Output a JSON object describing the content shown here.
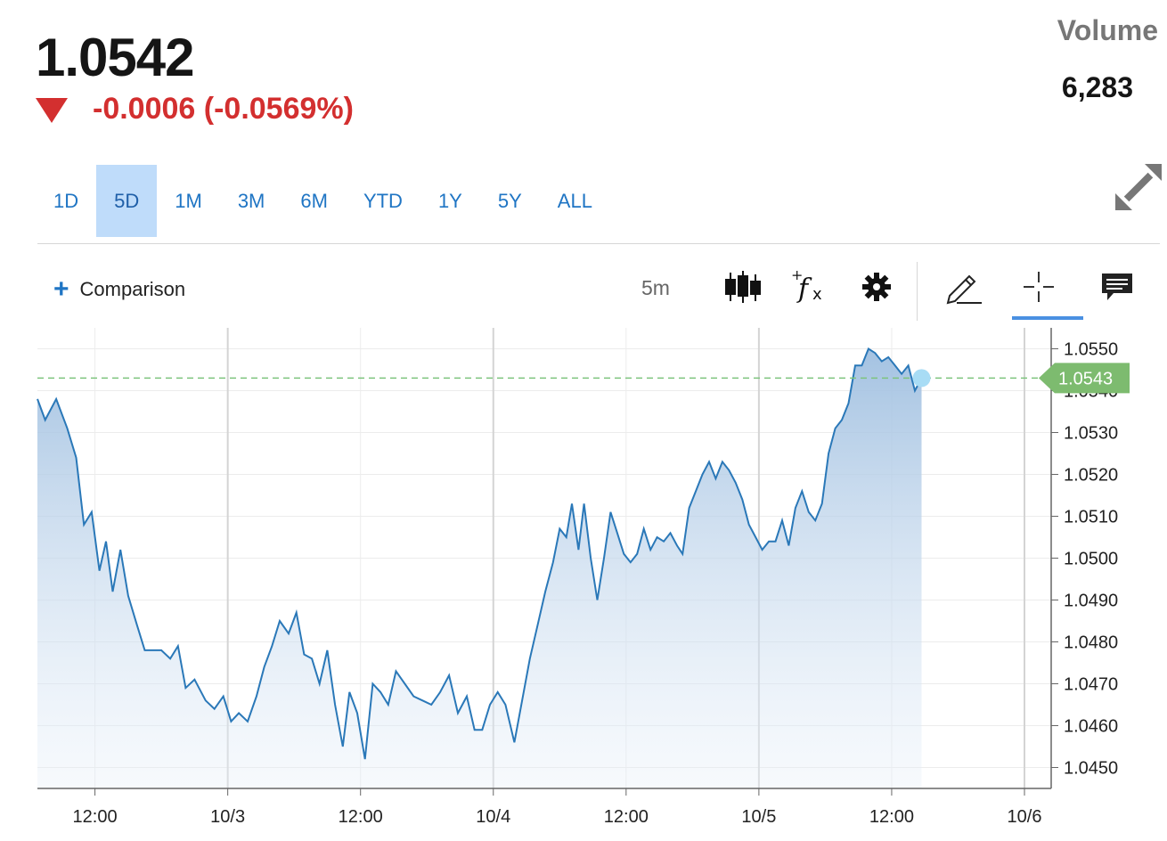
{
  "quote": {
    "price": "1.0542",
    "change": "-0.0006 (-0.0569%)",
    "direction": "down",
    "down_color": "#d32f2f"
  },
  "volume": {
    "label": "Volume",
    "value": "6,283"
  },
  "range_tabs": [
    {
      "label": "1D",
      "active": false
    },
    {
      "label": "5D",
      "active": true
    },
    {
      "label": "1M",
      "active": false
    },
    {
      "label": "3M",
      "active": false
    },
    {
      "label": "6M",
      "active": false
    },
    {
      "label": "YTD",
      "active": false
    },
    {
      "label": "1Y",
      "active": false
    },
    {
      "label": "5Y",
      "active": false
    },
    {
      "label": "ALL",
      "active": false
    }
  ],
  "toolbar": {
    "comparison_label": "Comparison",
    "interval": "5m",
    "icons": [
      "candlestick-icon",
      "function-icon",
      "gear-icon",
      "pencil-icon",
      "crosshair-icon",
      "comment-icon"
    ],
    "active_tool": "crosshair-icon"
  },
  "expand_icon": "expand-icon",
  "chart_data": {
    "type": "area",
    "line_color": "#2a78b8",
    "fill_color": "#a9c6e3",
    "reference_line_color": "#7dc47d",
    "last_price_tag": "1.0543",
    "last_price_tag_color": "#7dbb6f",
    "x_tick_labels": [
      "12:00",
      "10/3",
      "12:00",
      "10/4",
      "12:00",
      "10/5",
      "12:00",
      "10/6"
    ],
    "y_tick_labels": [
      "1.0550",
      "1.0540",
      "1.0530",
      "1.0520",
      "1.0510",
      "1.0500",
      "1.0490",
      "1.0480",
      "1.0470",
      "1.0460",
      "1.0450"
    ],
    "ylim": [
      1.0445,
      1.0555
    ],
    "reference_value": 1.0543,
    "y_ticks": [
      1.055,
      1.054,
      1.053,
      1.052,
      1.051,
      1.05,
      1.049,
      1.048,
      1.047,
      1.046,
      1.045
    ],
    "x_tick_positions_hours": [
      12,
      24,
      36,
      48,
      60,
      72,
      84,
      96
    ],
    "x_range_hours": [
      6.8,
      96
    ],
    "series": [
      {
        "values": [
          [
            6.8,
            1.0538
          ],
          [
            7.5,
            1.0533
          ],
          [
            8.5,
            1.0538
          ],
          [
            9.5,
            1.0531
          ],
          [
            10.3,
            1.0524
          ],
          [
            11.0,
            1.0508
          ],
          [
            11.7,
            1.0511
          ],
          [
            12.4,
            1.0497
          ],
          [
            13.0,
            1.0504
          ],
          [
            13.6,
            1.0492
          ],
          [
            14.3,
            1.0502
          ],
          [
            15.0,
            1.0491
          ],
          [
            15.8,
            1.0484
          ],
          [
            16.5,
            1.0478
          ],
          [
            17.3,
            1.0478
          ],
          [
            18.0,
            1.0478
          ],
          [
            18.8,
            1.0476
          ],
          [
            19.5,
            1.0479
          ],
          [
            20.2,
            1.0469
          ],
          [
            21.0,
            1.0471
          ],
          [
            22.0,
            1.0466
          ],
          [
            22.8,
            1.0464
          ],
          [
            23.6,
            1.0467
          ],
          [
            24.3,
            1.0461
          ],
          [
            25.0,
            1.0463
          ],
          [
            25.8,
            1.0461
          ],
          [
            26.6,
            1.0467
          ],
          [
            27.3,
            1.0474
          ],
          [
            28.0,
            1.0479
          ],
          [
            28.7,
            1.0485
          ],
          [
            29.5,
            1.0482
          ],
          [
            30.2,
            1.0487
          ],
          [
            30.9,
            1.0477
          ],
          [
            31.6,
            1.0476
          ],
          [
            32.3,
            1.047
          ],
          [
            33.0,
            1.0478
          ],
          [
            33.7,
            1.0465
          ],
          [
            34.4,
            1.0455
          ],
          [
            35.0,
            1.0468
          ],
          [
            35.7,
            1.0463
          ],
          [
            36.4,
            1.0452
          ],
          [
            37.1,
            1.047
          ],
          [
            37.8,
            1.0468
          ],
          [
            38.5,
            1.0465
          ],
          [
            39.2,
            1.0473
          ],
          [
            40.0,
            1.047
          ],
          [
            40.8,
            1.0467
          ],
          [
            41.6,
            1.0466
          ],
          [
            42.4,
            1.0465
          ],
          [
            43.2,
            1.0468
          ],
          [
            44.0,
            1.0472
          ],
          [
            44.8,
            1.0463
          ],
          [
            45.6,
            1.0467
          ],
          [
            46.3,
            1.0459
          ],
          [
            47.0,
            1.0459
          ],
          [
            47.7,
            1.0465
          ],
          [
            48.4,
            1.0468
          ],
          [
            49.1,
            1.0465
          ],
          [
            49.9,
            1.0456
          ],
          [
            50.6,
            1.0466
          ],
          [
            51.3,
            1.0476
          ],
          [
            52.0,
            1.0484
          ],
          [
            52.7,
            1.0492
          ],
          [
            53.4,
            1.0499
          ],
          [
            54.0,
            1.0507
          ],
          [
            54.6,
            1.0505
          ],
          [
            55.1,
            1.0513
          ],
          [
            55.7,
            1.0502
          ],
          [
            56.2,
            1.0513
          ],
          [
            56.8,
            1.05
          ],
          [
            57.4,
            1.049
          ],
          [
            58.0,
            1.05
          ],
          [
            58.6,
            1.0511
          ],
          [
            59.2,
            1.0506
          ],
          [
            59.8,
            1.0501
          ],
          [
            60.4,
            1.0499
          ],
          [
            61.0,
            1.0501
          ],
          [
            61.6,
            1.0507
          ],
          [
            62.2,
            1.0502
          ],
          [
            62.8,
            1.0505
          ],
          [
            63.4,
            1.0504
          ],
          [
            64.0,
            1.0506
          ],
          [
            64.6,
            1.0503
          ],
          [
            65.1,
            1.0501
          ],
          [
            65.7,
            1.0512
          ],
          [
            66.3,
            1.0516
          ],
          [
            66.9,
            1.052
          ],
          [
            67.5,
            1.0523
          ],
          [
            68.1,
            1.0519
          ],
          [
            68.7,
            1.0523
          ],
          [
            69.3,
            1.0521
          ],
          [
            69.9,
            1.0518
          ],
          [
            70.5,
            1.0514
          ],
          [
            71.1,
            1.0508
          ],
          [
            71.7,
            1.0505
          ],
          [
            72.3,
            1.0502
          ],
          [
            72.9,
            1.0504
          ],
          [
            73.5,
            1.0504
          ],
          [
            74.1,
            1.0509
          ],
          [
            74.7,
            1.0503
          ],
          [
            75.3,
            1.0512
          ],
          [
            75.9,
            1.0516
          ],
          [
            76.5,
            1.0511
          ],
          [
            77.1,
            1.0509
          ],
          [
            77.7,
            1.0513
          ],
          [
            78.3,
            1.0525
          ],
          [
            78.9,
            1.0531
          ],
          [
            79.5,
            1.0533
          ],
          [
            80.1,
            1.0537
          ],
          [
            80.7,
            1.0546
          ],
          [
            81.3,
            1.0546
          ],
          [
            81.9,
            1.055
          ],
          [
            82.5,
            1.0549
          ],
          [
            83.1,
            1.0547
          ],
          [
            83.7,
            1.0548
          ],
          [
            84.3,
            1.0546
          ],
          [
            84.9,
            1.0544
          ],
          [
            85.5,
            1.0546
          ],
          [
            86.1,
            1.054
          ],
          [
            86.7,
            1.0543
          ]
        ]
      }
    ]
  }
}
